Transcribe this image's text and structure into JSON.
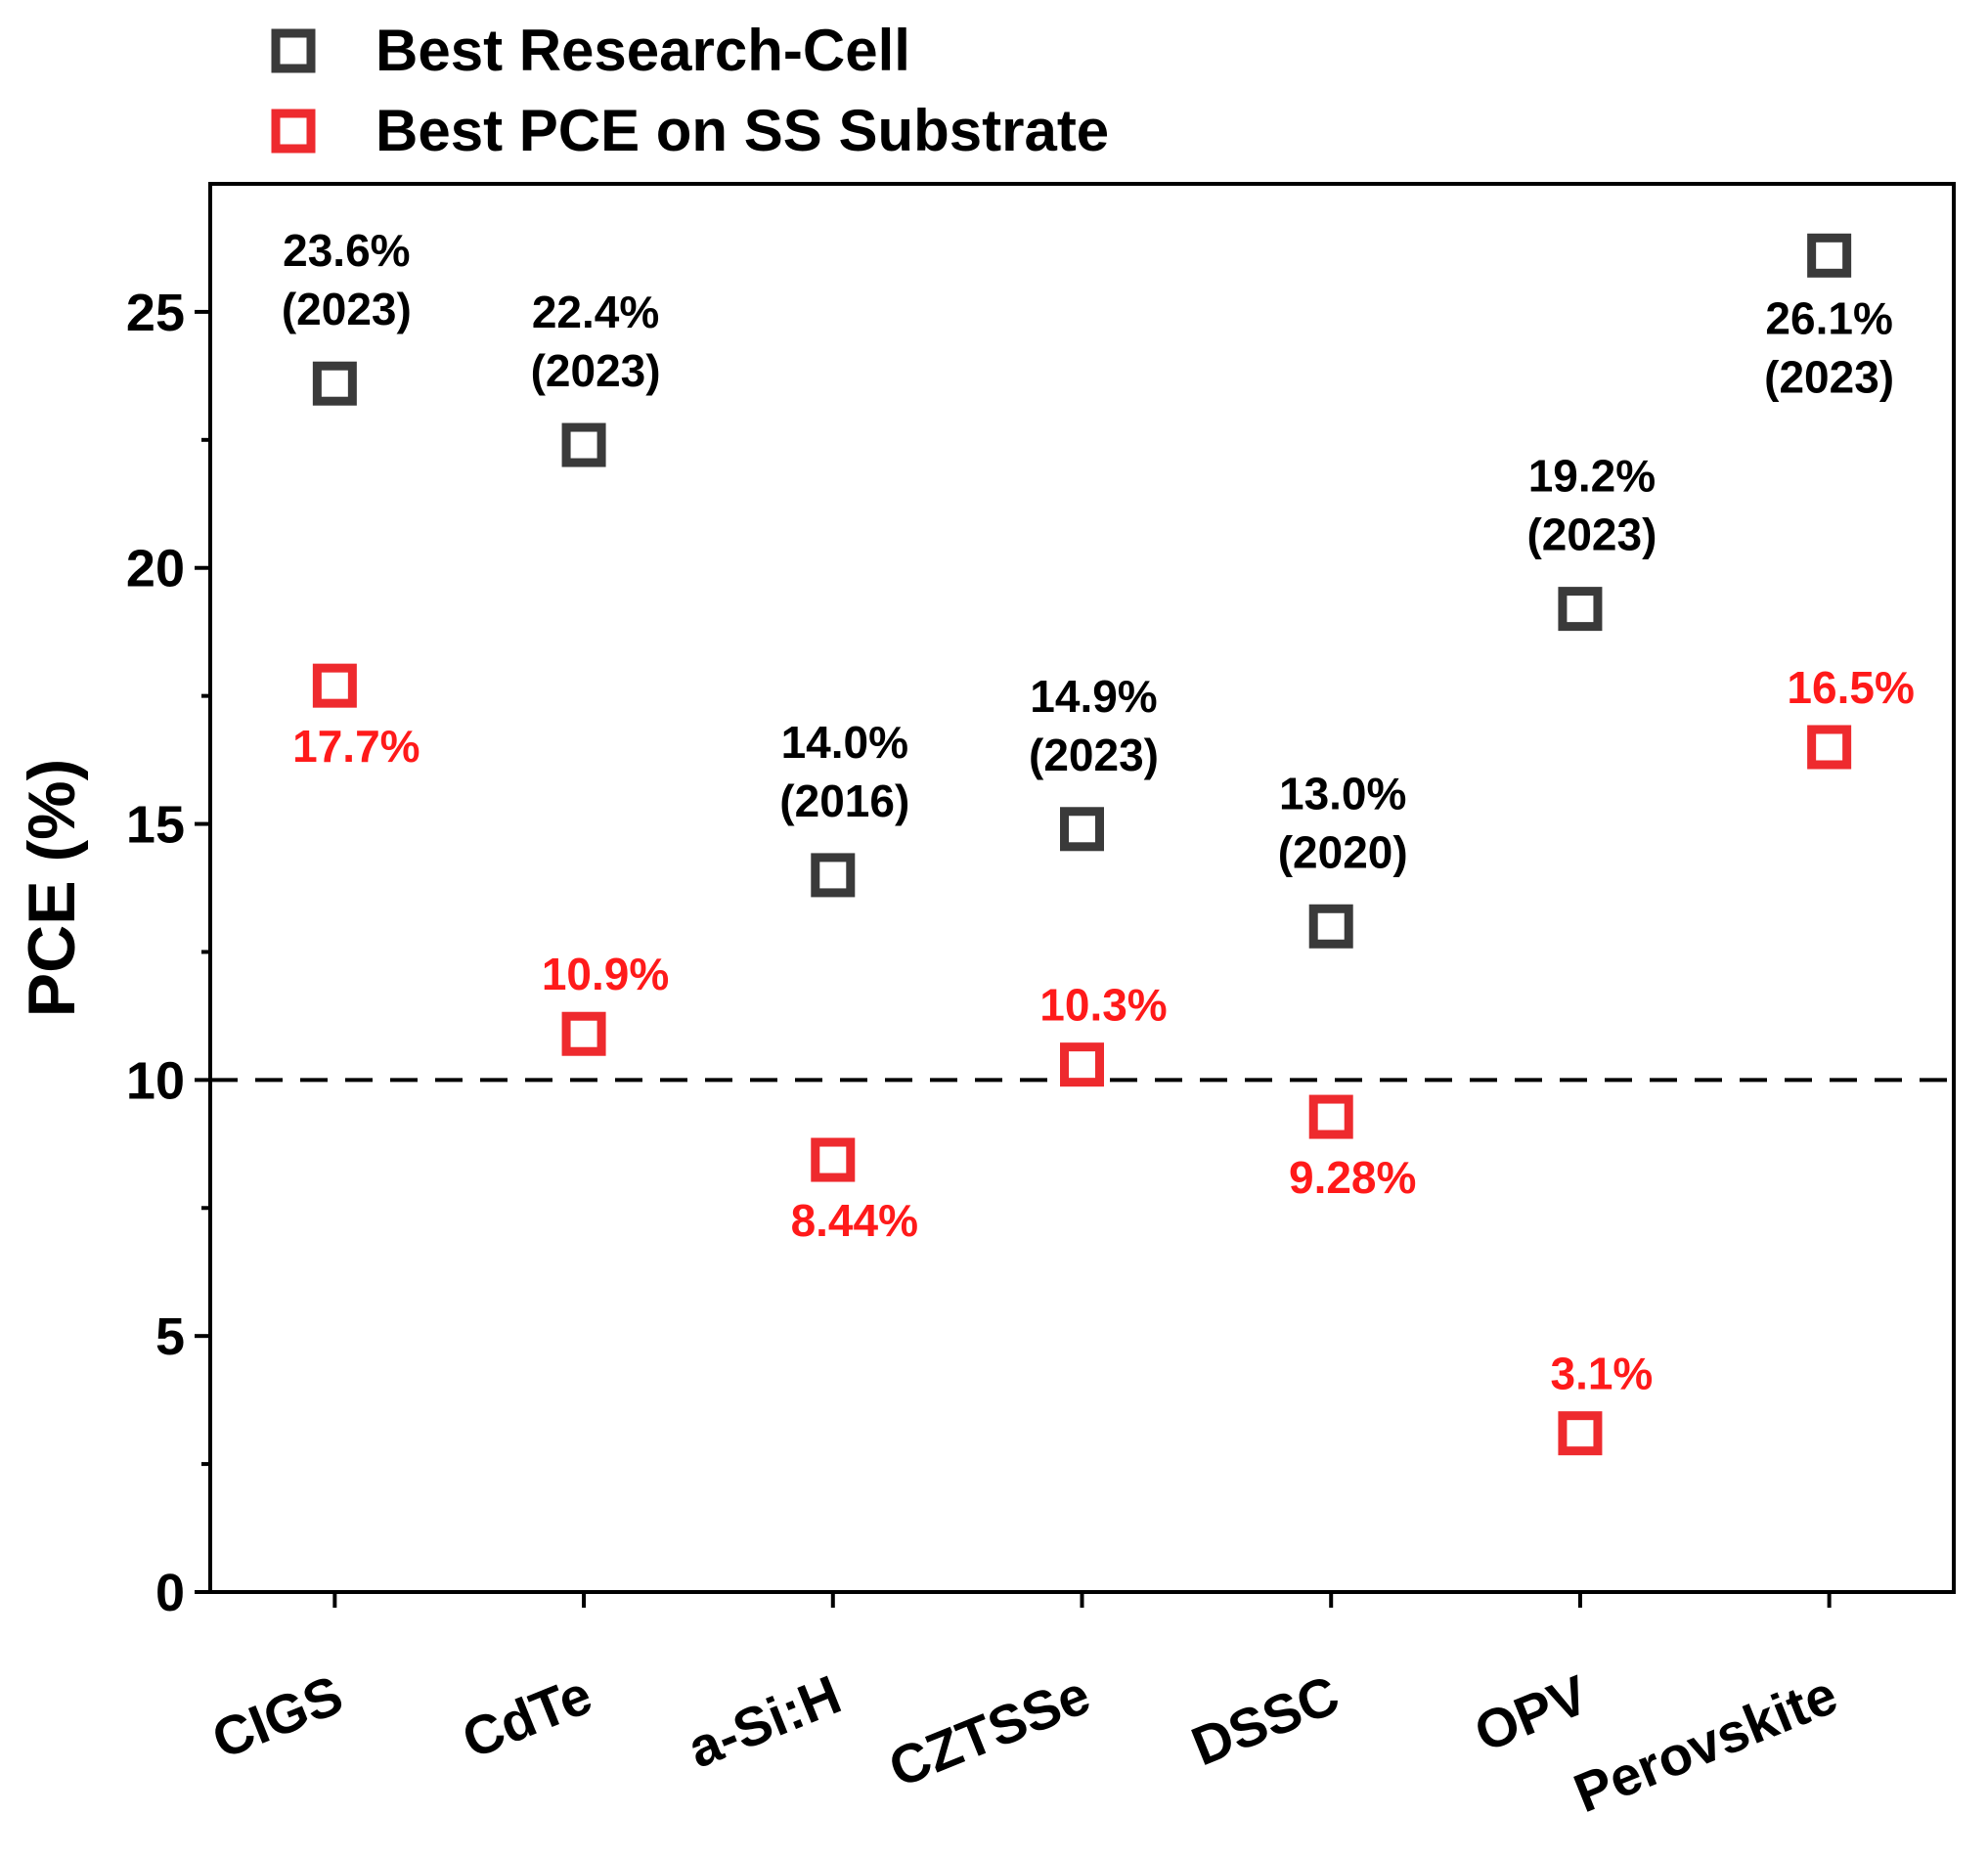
{
  "chart_data": {
    "type": "scatter",
    "title": "",
    "xlabel": "",
    "ylabel": "PCE (%)",
    "ylim": [
      0,
      27.5
    ],
    "yticks": [
      0,
      5,
      10,
      15,
      20,
      25
    ],
    "ytick_labels": [
      "0",
      "5",
      "10",
      "15",
      "20",
      "25"
    ],
    "minor_yticks": [
      2.5,
      7.5,
      12.5,
      17.5,
      22.5
    ],
    "categories": [
      "CIGS",
      "CdTe",
      "a-Si:H",
      "CZTSSe",
      "DSSC",
      "OPV",
      "Perovskite"
    ],
    "reference_line": {
      "y": 10,
      "style": "dashed",
      "color": "#000000"
    },
    "legend": {
      "position": "top-left-outside"
    },
    "series": [
      {
        "name": "Best Research-Cell",
        "color": "#3a3a3a",
        "marker": "open-square",
        "values": [
          23.6,
          22.4,
          14.0,
          14.9,
          13.0,
          19.2,
          26.1
        ],
        "labels": [
          "23.6%",
          "22.4%",
          "14.0%",
          "14.9%",
          "13.0%",
          "19.2%",
          "26.1%"
        ],
        "years": [
          "(2023)",
          "(2023)",
          "(2016)",
          "(2023)",
          "(2020)",
          "(2023)",
          "(2023)"
        ],
        "label_side": [
          "above",
          "above",
          "above",
          "above",
          "above",
          "above",
          "below"
        ]
      },
      {
        "name": "Best PCE on SS Substrate",
        "color": "#ee2a2e",
        "label_color": "#ff1a1a",
        "marker": "open-square",
        "values": [
          17.7,
          10.9,
          8.44,
          10.3,
          9.28,
          3.1,
          16.5
        ],
        "labels": [
          "17.7%",
          "10.9%",
          "8.44%",
          "10.3%",
          "9.28%",
          "3.1%",
          "16.5%"
        ],
        "label_side": [
          "below",
          "above",
          "below",
          "above",
          "below",
          "above",
          "above"
        ]
      }
    ]
  }
}
